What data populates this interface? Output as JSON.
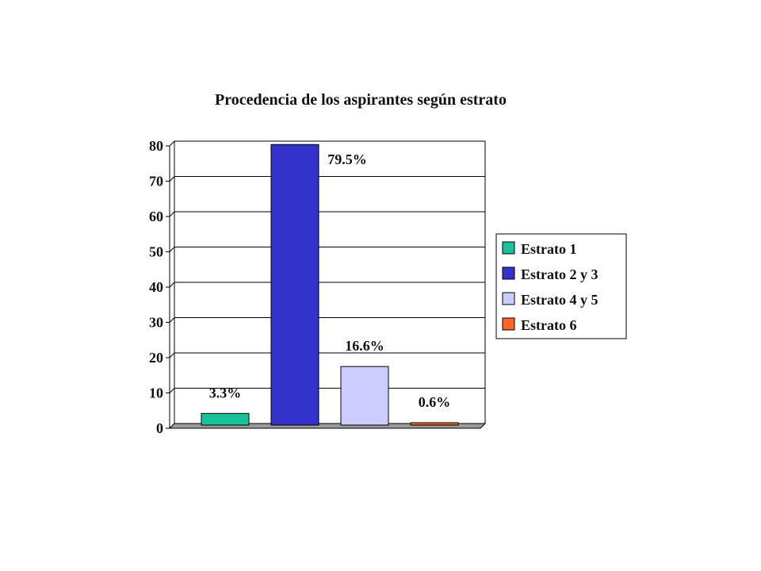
{
  "chart_data": {
    "type": "bar",
    "title": "Procedencia de los aspirantes según estrato",
    "xlabel": "",
    "ylabel": "",
    "ylim": [
      0,
      80
    ],
    "yticks": [
      0,
      10,
      20,
      30,
      40,
      50,
      60,
      70,
      80
    ],
    "grid": true,
    "legend_position": "right",
    "series": [
      {
        "name": "Estrato 1",
        "value": 3.3,
        "label": "3.3%",
        "color": "#19C39A"
      },
      {
        "name": "Estrato 2 y 3",
        "value": 79.5,
        "label": "79.5%",
        "color": "#3333CC"
      },
      {
        "name": "Estrato 4 y 5",
        "value": 16.6,
        "label": "16.6%",
        "color": "#CCCCFF"
      },
      {
        "name": "Estrato 6",
        "value": 0.6,
        "label": "0.6%",
        "color": "#FF6622"
      }
    ]
  }
}
